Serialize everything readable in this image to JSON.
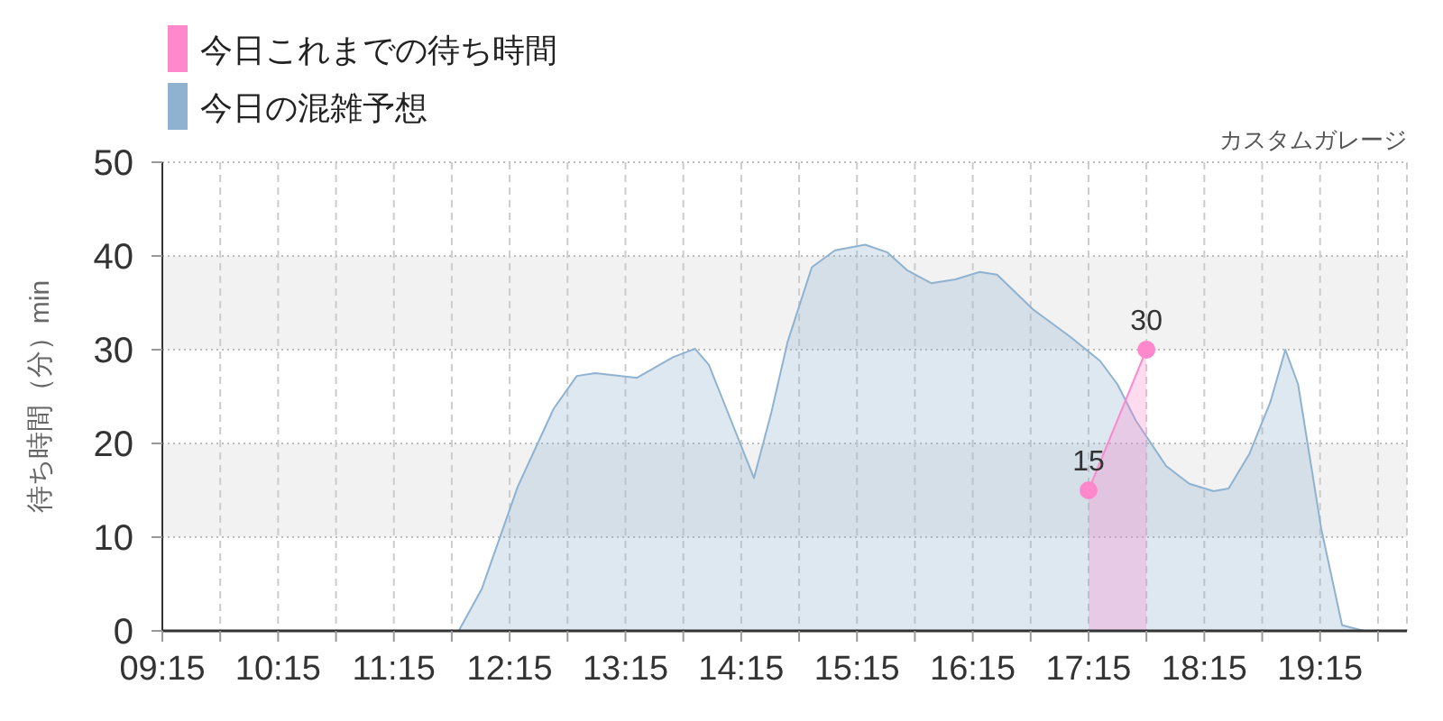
{
  "chart_data": {
    "type": "area",
    "subtitle": "カスタムガレージ",
    "ylabel": "待ち時間（分）min",
    "x": [
      9.25,
      11.25,
      11.67,
      11.81,
      12.01,
      12.32,
      12.63,
      12.83,
      12.99,
      13.35,
      13.66,
      13.85,
      13.97,
      14.08,
      14.36,
      14.51,
      14.65,
      14.86,
      15.06,
      15.32,
      15.51,
      15.68,
      15.89,
      16.1,
      16.31,
      16.46,
      16.77,
      17.09,
      17.35,
      17.5,
      17.66,
      17.92,
      18.12,
      18.33,
      18.46,
      18.64,
      18.82,
      18.95,
      19.06,
      19.26,
      19.44,
      19.63,
      20.0
    ],
    "series": [
      {
        "name": "今日これまでの待ち時間",
        "color": "#ff88cc",
        "marker": "circle",
        "x": [
          17.25,
          17.75
        ],
        "values": [
          15,
          30
        ],
        "value_labels": [
          "15",
          "30"
        ]
      },
      {
        "name": "今日の混雑予想",
        "color": "#8fb2d0",
        "marker": "none",
        "values": [
          0,
          0,
          0,
          0,
          4.5,
          15.4,
          23.7,
          27.2,
          27.5,
          27.0,
          29.2,
          30.1,
          28.4,
          25.0,
          16.3,
          23.3,
          30.8,
          38.8,
          40.6,
          41.2,
          40.4,
          38.5,
          37.1,
          37.5,
          38.3,
          38.0,
          34.3,
          31.4,
          28.8,
          26.3,
          22.4,
          17.6,
          15.7,
          14.9,
          15.2,
          18.9,
          24.4,
          30.0,
          26.3,
          10.9,
          0.6,
          0,
          0
        ]
      }
    ],
    "xlim": [
      9.25,
      20.0
    ],
    "xticks": [
      {
        "value": 9.25,
        "label": "09:15"
      },
      {
        "value": 9.75,
        "label": null
      },
      {
        "value": 10.25,
        "label": "10:15"
      },
      {
        "value": 10.75,
        "label": null
      },
      {
        "value": 11.25,
        "label": "11:15"
      },
      {
        "value": 11.75,
        "label": null
      },
      {
        "value": 12.25,
        "label": "12:15"
      },
      {
        "value": 12.75,
        "label": null
      },
      {
        "value": 13.25,
        "label": "13:15"
      },
      {
        "value": 13.75,
        "label": null
      },
      {
        "value": 14.25,
        "label": "14:15"
      },
      {
        "value": 14.75,
        "label": null
      },
      {
        "value": 15.25,
        "label": "15:15"
      },
      {
        "value": 15.75,
        "label": null
      },
      {
        "value": 16.25,
        "label": "16:15"
      },
      {
        "value": 16.75,
        "label": null
      },
      {
        "value": 17.25,
        "label": "17:15"
      },
      {
        "value": 17.75,
        "label": null
      },
      {
        "value": 18.25,
        "label": "18:15"
      },
      {
        "value": 18.75,
        "label": null
      },
      {
        "value": 19.25,
        "label": "19:15"
      },
      {
        "value": 19.75,
        "label": null
      }
    ],
    "ylim": [
      0,
      50
    ],
    "yticks": [
      0,
      10,
      20,
      30,
      40,
      50
    ],
    "grid": true,
    "legend": "top left"
  }
}
